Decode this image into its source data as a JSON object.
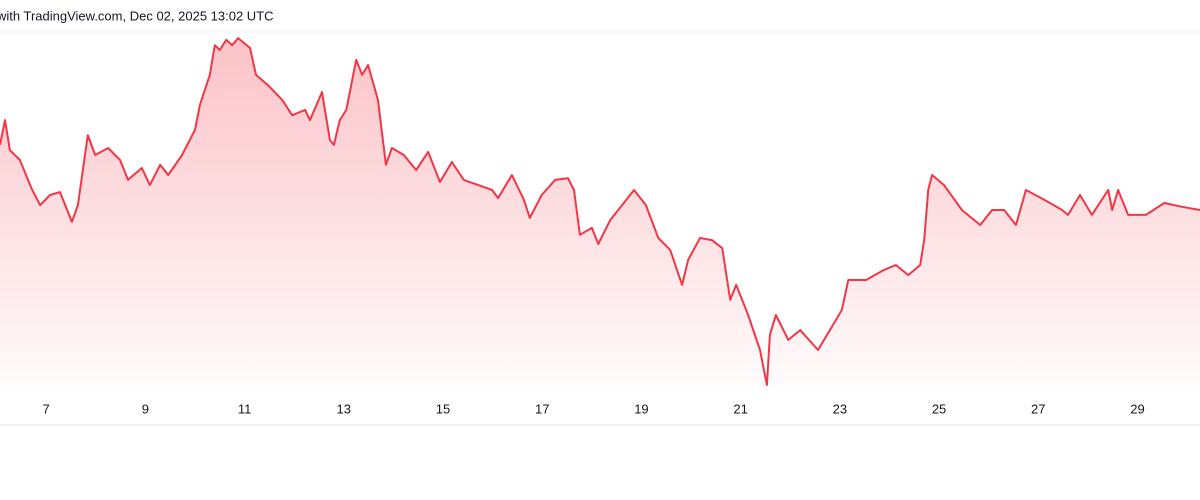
{
  "chart_data": {
    "type": "area",
    "title": "with TradingView.com, Dec 02, 2025 13:02 UTC",
    "x": [
      6.07,
      6.17,
      6.27,
      6.47,
      6.72,
      6.88,
      7.08,
      7.28,
      7.52,
      7.64,
      7.84,
      7.99,
      8.25,
      8.49,
      8.65,
      8.93,
      9.09,
      9.3,
      9.46,
      9.74,
      10.0,
      10.1,
      10.3,
      10.4,
      10.5,
      10.63,
      10.75,
      10.87,
      11.11,
      11.23,
      11.47,
      11.76,
      11.96,
      12.22,
      12.32,
      12.56,
      12.72,
      12.8,
      12.92,
      13.05,
      13.25,
      13.37,
      13.49,
      13.69,
      13.85,
      13.97,
      14.21,
      14.46,
      14.7,
      14.94,
      15.18,
      15.42,
      15.71,
      15.99,
      16.11,
      16.39,
      16.63,
      16.75,
      16.99,
      17.26,
      17.52,
      17.64,
      17.76,
      18.0,
      18.13,
      18.37,
      18.61,
      18.85,
      19.09,
      19.34,
      19.58,
      19.82,
      19.94,
      20.18,
      20.42,
      20.63,
      20.79,
      20.91,
      21.15,
      21.39,
      21.53,
      21.59,
      21.71,
      21.96,
      22.2,
      22.56,
      22.8,
      23.04,
      23.17,
      23.53,
      23.89,
      24.13,
      24.38,
      24.62,
      24.7,
      24.78,
      24.86,
      25.1,
      25.46,
      25.83,
      26.07,
      26.31,
      26.55,
      26.75,
      27.12,
      27.48,
      27.6,
      27.84,
      28.08,
      28.41,
      28.49,
      28.61,
      28.81,
      29.17,
      29.54,
      29.9,
      30.26
    ],
    "series": [
      {
        "color": "#f23645",
        "values": [
          68.6,
          75.7,
          67.1,
          64.3,
          55.7,
          51.4,
          54.3,
          55.1,
          46.6,
          51.4,
          71.4,
          65.7,
          67.7,
          64.3,
          58.6,
          62.0,
          57.1,
          62.9,
          60.0,
          65.7,
          72.9,
          80.0,
          88.6,
          97.1,
          95.7,
          98.6,
          97.1,
          99.1,
          96.3,
          88.6,
          85.7,
          81.4,
          77.1,
          78.6,
          75.7,
          83.7,
          70.0,
          68.6,
          75.7,
          78.6,
          92.9,
          88.6,
          91.4,
          81.4,
          62.9,
          67.7,
          65.7,
          61.4,
          66.6,
          58.0,
          63.7,
          58.6,
          57.1,
          55.7,
          53.4,
          60.0,
          52.9,
          47.7,
          54.3,
          58.6,
          59.1,
          55.7,
          42.9,
          44.9,
          40.3,
          47.1,
          51.4,
          55.7,
          51.4,
          42.0,
          38.6,
          28.6,
          35.7,
          42.0,
          41.4,
          39.1,
          24.3,
          28.6,
          20.0,
          10.0,
          0,
          14.3,
          20.0,
          12.9,
          15.7,
          10.0,
          15.7,
          21.4,
          30.0,
          30.0,
          32.9,
          34.3,
          31.4,
          34.3,
          41.4,
          55.7,
          60.0,
          57.1,
          50.0,
          45.7,
          50.0,
          50.0,
          45.7,
          55.7,
          52.9,
          50.0,
          48.6,
          54.3,
          48.6,
          55.7,
          50.0,
          55.7,
          48.6,
          48.6,
          52.0,
          50.9,
          50.0
        ]
      }
    ],
    "xlim": [
      6.07,
      30.26
    ],
    "xticks": [
      7,
      9,
      11,
      13,
      15,
      17,
      19,
      21,
      23,
      25,
      27,
      29
    ],
    "ylim": [
      0,
      100
    ]
  }
}
